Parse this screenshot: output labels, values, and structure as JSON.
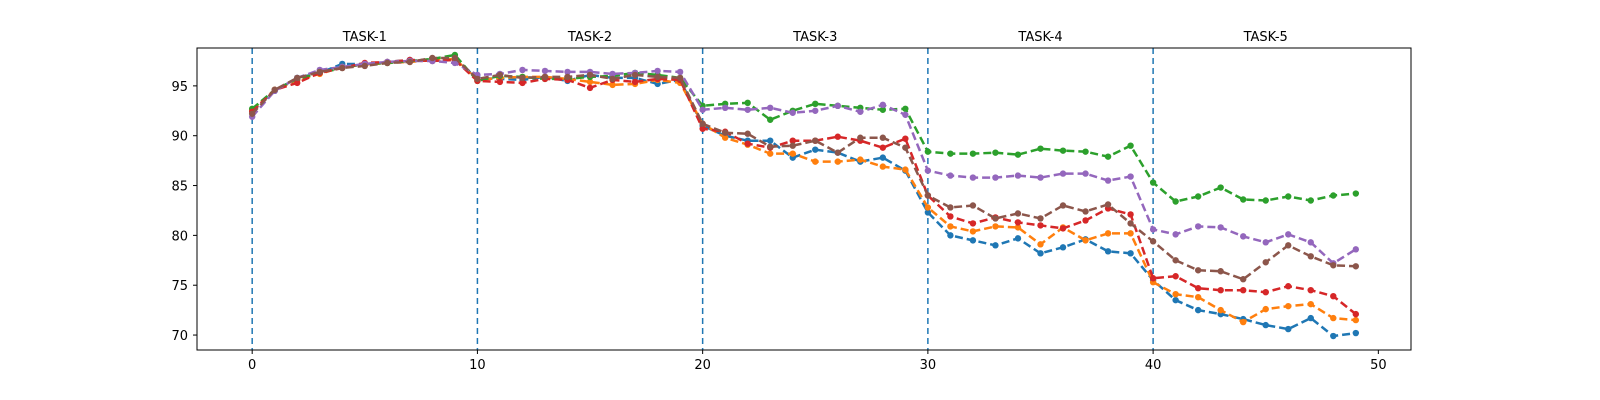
{
  "chart_data": {
    "type": "line",
    "title": "",
    "xlabel": "",
    "ylabel": "",
    "xlim": [
      -2.45,
      51.45
    ],
    "ylim": [
      68.5,
      98.8
    ],
    "x_ticks": [
      0,
      10,
      20,
      30,
      40,
      50
    ],
    "y_ticks": [
      70,
      75,
      80,
      85,
      90,
      95
    ],
    "grid": false,
    "legend": "none",
    "task_boundaries": [
      0,
      10,
      20,
      30,
      40
    ],
    "task_labels": [
      {
        "label": "TASK-1",
        "x": 5
      },
      {
        "label": "TASK-2",
        "x": 15
      },
      {
        "label": "TASK-3",
        "x": 25
      },
      {
        "label": "TASK-4",
        "x": 35
      },
      {
        "label": "TASK-5",
        "x": 45
      }
    ],
    "x": [
      0,
      1,
      2,
      3,
      4,
      5,
      6,
      7,
      8,
      9,
      10,
      11,
      12,
      13,
      14,
      15,
      16,
      17,
      18,
      19,
      20,
      21,
      22,
      23,
      24,
      25,
      26,
      27,
      28,
      29,
      30,
      31,
      32,
      33,
      34,
      35,
      36,
      37,
      38,
      39,
      40,
      41,
      42,
      43,
      44,
      45,
      46,
      47,
      48,
      49
    ],
    "series": [
      {
        "color": "#1f77b4",
        "values": [
          92.5,
          94.5,
          95.8,
          96.3,
          97.2,
          97.2,
          97.4,
          97.6,
          97.5,
          97.6,
          95.8,
          95.7,
          95.6,
          95.9,
          95.5,
          96.1,
          95.8,
          95.8,
          95.2,
          95.6,
          91.0,
          90.0,
          89.5,
          89.5,
          87.8,
          88.6,
          88.3,
          87.4,
          87.8,
          86.5,
          82.3,
          80.0,
          79.5,
          79.0,
          79.7,
          78.2,
          78.8,
          79.6,
          78.4,
          78.2,
          75.5,
          73.5,
          72.5,
          72.1,
          71.6,
          71.0,
          70.6,
          71.7,
          69.9,
          70.2
        ]
      },
      {
        "color": "#ff7f0e",
        "values": [
          92.6,
          94.6,
          95.6,
          96.2,
          96.9,
          97.1,
          97.3,
          97.4,
          97.6,
          97.7,
          95.6,
          95.8,
          95.9,
          95.9,
          95.7,
          95.4,
          95.1,
          95.2,
          95.6,
          95.3,
          91.2,
          89.8,
          89.1,
          88.2,
          88.2,
          87.4,
          87.4,
          87.6,
          86.9,
          86.6,
          82.8,
          80.9,
          80.4,
          80.9,
          80.8,
          79.1,
          80.8,
          79.5,
          80.2,
          80.2,
          75.3,
          74.1,
          73.8,
          72.5,
          71.3,
          72.6,
          72.9,
          73.1,
          71.7,
          71.5
        ]
      },
      {
        "color": "#2ca02c",
        "values": [
          92.7,
          94.6,
          95.7,
          96.3,
          96.8,
          97.2,
          97.3,
          97.5,
          97.7,
          98.1,
          95.5,
          96.0,
          95.9,
          95.7,
          95.7,
          95.9,
          96.0,
          96.3,
          96.1,
          95.8,
          93.0,
          93.2,
          93.3,
          91.6,
          92.5,
          93.2,
          93.0,
          92.8,
          92.6,
          92.7,
          88.4,
          88.2,
          88.2,
          88.3,
          88.1,
          88.7,
          88.5,
          88.4,
          87.9,
          89.0,
          85.3,
          83.4,
          83.9,
          84.8,
          83.6,
          83.5,
          83.9,
          83.5,
          84.0,
          84.2
        ]
      },
      {
        "color": "#d62728",
        "values": [
          92.4,
          94.6,
          95.3,
          96.3,
          96.8,
          97.3,
          97.4,
          97.6,
          97.5,
          97.6,
          95.5,
          95.4,
          95.3,
          95.7,
          95.6,
          94.8,
          95.6,
          95.4,
          95.7,
          95.6,
          90.7,
          90.4,
          89.2,
          88.8,
          89.5,
          89.5,
          89.9,
          89.5,
          88.8,
          89.7,
          84.0,
          81.9,
          81.2,
          81.8,
          81.3,
          81.0,
          80.7,
          81.5,
          82.7,
          82.1,
          75.7,
          75.9,
          74.7,
          74.5,
          74.5,
          74.3,
          74.9,
          74.5,
          73.9,
          72.1
        ]
      },
      {
        "color": "#9467bd",
        "values": [
          91.9,
          94.5,
          95.8,
          96.6,
          96.9,
          97.2,
          97.4,
          97.5,
          97.5,
          97.3,
          96.1,
          96.2,
          96.6,
          96.5,
          96.4,
          96.4,
          96.2,
          96.3,
          96.5,
          96.4,
          92.6,
          92.8,
          92.6,
          92.8,
          92.3,
          92.5,
          93.0,
          92.4,
          93.1,
          92.1,
          86.5,
          86.0,
          85.8,
          85.8,
          86.0,
          85.8,
          86.2,
          86.2,
          85.5,
          85.9,
          80.6,
          80.1,
          80.9,
          80.8,
          79.9,
          79.3,
          80.1,
          79.3,
          77.2,
          78.6
        ]
      },
      {
        "color": "#8c564b",
        "values": [
          92.2,
          94.6,
          95.8,
          96.4,
          96.8,
          97.0,
          97.3,
          97.4,
          97.8,
          97.8,
          95.7,
          96.1,
          95.8,
          95.9,
          95.9,
          96.1,
          95.7,
          96.1,
          95.9,
          95.8,
          91.2,
          90.3,
          90.2,
          88.9,
          89.0,
          89.5,
          88.3,
          89.8,
          89.8,
          88.8,
          84.0,
          82.8,
          83.0,
          81.7,
          82.2,
          81.7,
          83.0,
          82.4,
          83.1,
          81.2,
          79.4,
          77.5,
          76.5,
          76.4,
          75.6,
          77.3,
          79.0,
          77.9,
          77.0,
          76.9
        ]
      }
    ]
  }
}
